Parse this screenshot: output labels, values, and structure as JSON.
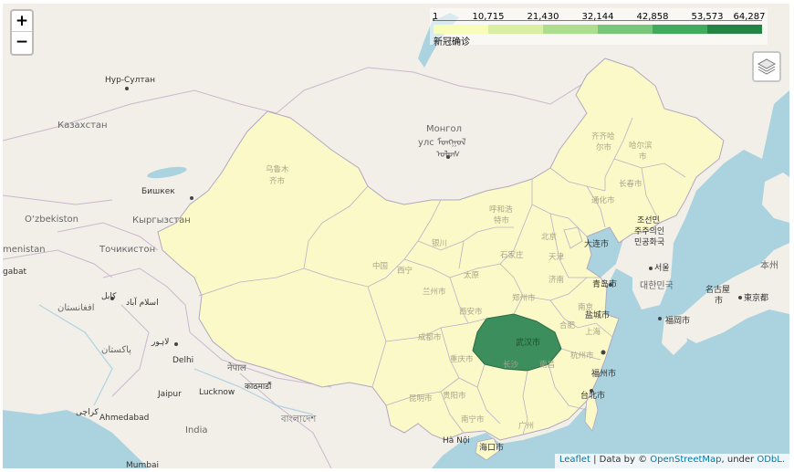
{
  "legend": {
    "ticks": [
      "1",
      "10,715",
      "21,430",
      "32,144",
      "42,858",
      "53,573",
      "64,287"
    ],
    "caption": "新冠确诊",
    "colors": [
      "#f7fcb9",
      "#d9f0a3",
      "#addd8e",
      "#78c679",
      "#41ab5d",
      "#238443"
    ]
  },
  "zoom": {
    "in_label": "+",
    "out_label": "−"
  },
  "attribution": {
    "leaflet": "Leaflet",
    "sep1": " | Data by © ",
    "osm": "OpenStreetMap",
    "sep2": ", under ",
    "odbl": "ODbL."
  },
  "colors": {
    "water": "#aad3df",
    "land": "#f2efe9",
    "china_fill": "#fbf9c7",
    "hubei_fill": "#3c8f5c",
    "border": "#b1a8c0"
  },
  "labels": {
    "nursultan": "Нур-Султан",
    "kazakhstan": "Казахстан",
    "bishkek": "Бишкек",
    "kyrgyzstan": "Кыргызстан",
    "uzbekiston": "O‘zbekiston",
    "tajikistan": "Точикистон",
    "turkmenistan": "menistan",
    "ashgabat": "gabat",
    "kabul": "کابل",
    "afghanistan": "افغانستان",
    "islamabad": "اسلام آباد",
    "lahore": "لاہور",
    "pakistan": "پاکستان",
    "delhi": "Delhi",
    "jaipur": "Jaipur",
    "lucknow": "Lucknow",
    "kathmandu": "काठमाडौं",
    "nepal": "नेपाल",
    "ahmedabad": "Ahmedabad",
    "india": "India",
    "karachi": "کراچی",
    "mumbai": "Mumbai",
    "bangladesh": "বাংলাদেশ",
    "mongolia": "Монгол",
    "mongolia2": "улс ᠮᠣᠩᠭᠣᠯ",
    "mongolia3": "ᠤᠯᠤᠰ",
    "urumqi": "乌鲁木",
    "urumqi2": "齐市",
    "hohhot": "呼和浩",
    "hohhot2": "特市",
    "qiqihar": "齐齐哈",
    "qiqihar2": "尔市",
    "harbin": "哈尔滨",
    "harbin2": "市",
    "changchun": "长春市",
    "tonghua": "通化市",
    "beijing": "北京",
    "tianjin": "天津",
    "shijiazhuang": "石家庄",
    "taiyuan": "太原",
    "jinan": "济南",
    "qingdao": "青岛市",
    "dalian": "大连",
    "zhengzhou": "郑州市",
    "xian": "西安市",
    "xining": "西宁",
    "lanzhou": "兰州市",
    "yinchuan": "银川",
    "zhongguo": "中国",
    "chengdu": "成都市",
    "chongqing": "重庆市",
    "wuhan": "武汉市",
    "hefei": "合肥",
    "nanjing": "南京",
    "yancheng": "盐城市",
    "shanghai": "上海",
    "hangzhou": "杭州市",
    "nanchang": "南昌",
    "changsha": "长沙",
    "fuzhou": "福州市",
    "taipei": "台北市",
    "guiyang": "贵阳市",
    "kunming": "昆明市",
    "nanning": "南宁市",
    "guangzhou": "广州",
    "haikou": "海口市",
    "hanoi": "Hà Nội",
    "pyongyang": "조선민",
    "pyongyang2": "주주의인",
    "pyongyang3": "민공화국",
    "seoul": "서울",
    "korea": "대한민국",
    "fukuoka": "福岡市",
    "nagoya": "名古屋",
    "nagoya2": "市",
    "tokyo": "東京都",
    "honshu": "本州",
    "dalian2": "大连市"
  }
}
